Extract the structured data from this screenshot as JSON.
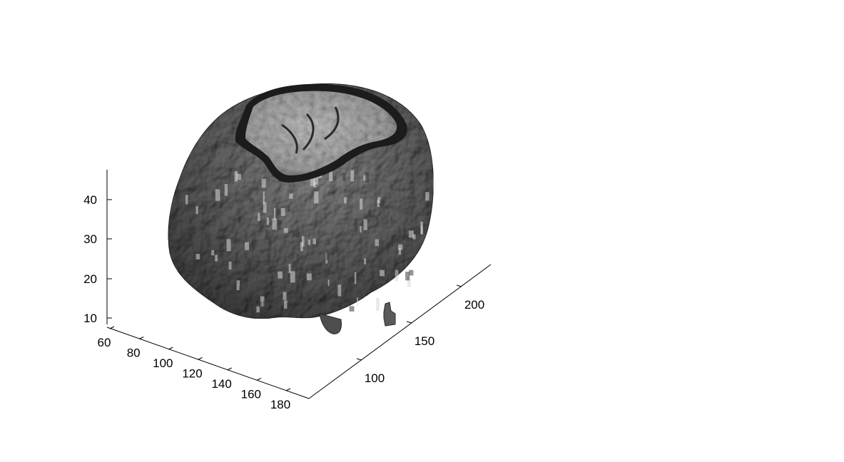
{
  "figure": {
    "kind": "3D isosurface rendering of a brain volume with a horizontal cut plane",
    "colormap": "gray",
    "background_color": "#ffffff",
    "surface_color": "#5a5a5a",
    "cut_plane_colors": [
      "#1a1a1a",
      "#7a7a7a",
      "#b4b4b4"
    ]
  },
  "axes": {
    "x": {
      "ticks": [
        "60",
        "80",
        "100",
        "120",
        "140",
        "160",
        "180"
      ]
    },
    "y": {
      "ticks": [
        "100",
        "150",
        "200"
      ]
    },
    "z": {
      "ticks": [
        "10",
        "20",
        "30",
        "40"
      ]
    }
  }
}
